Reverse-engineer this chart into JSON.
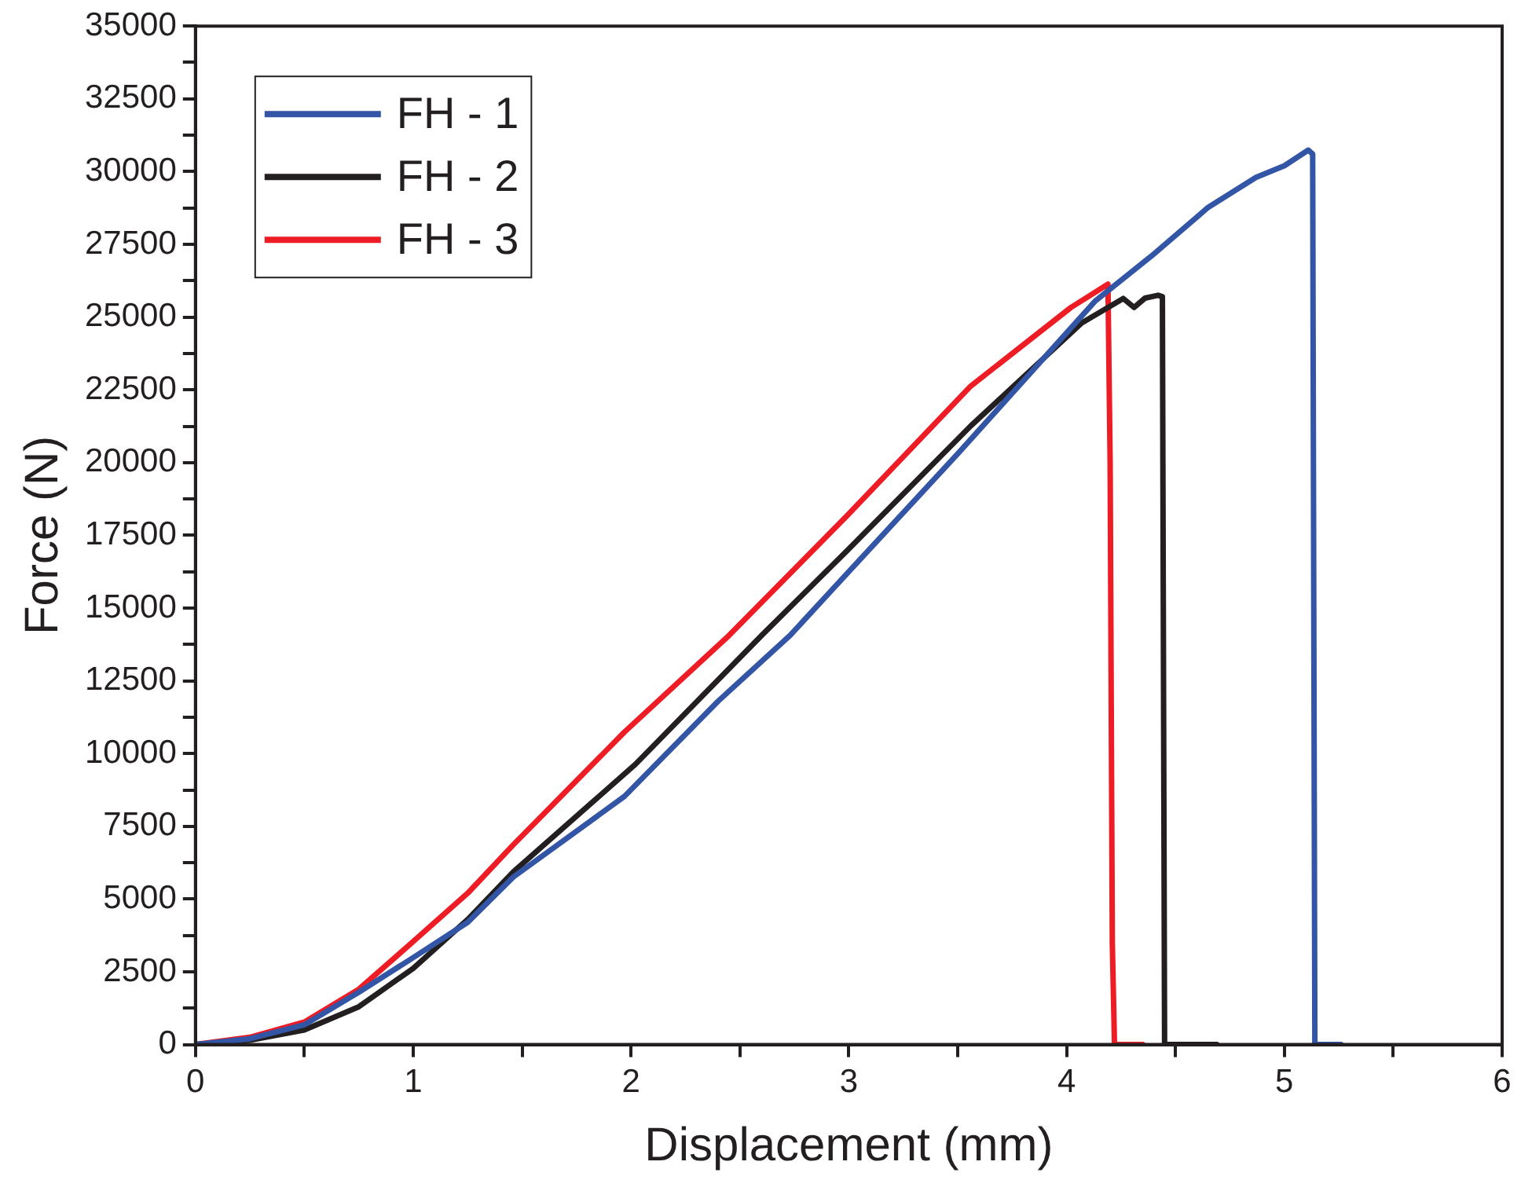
{
  "chart_data": {
    "type": "line",
    "xlabel": "Displacement (mm)",
    "ylabel": "Force (N)",
    "xlim": [
      0,
      6
    ],
    "ylim": [
      0,
      35000
    ],
    "xticks": [
      0,
      {
        "value": 0.5,
        "label": null
      },
      1,
      {
        "value": 1.5,
        "label": null
      },
      2,
      {
        "value": 2.5,
        "label": null
      },
      3,
      {
        "value": 3.5,
        "label": null
      },
      4,
      {
        "value": 4.5,
        "label": null
      },
      5,
      {
        "value": 5.5,
        "label": null
      },
      6
    ],
    "yticks": [
      0,
      {
        "value": 1250,
        "label": null
      },
      2500,
      {
        "value": 3750,
        "label": null
      },
      5000,
      {
        "value": 6250,
        "label": null
      },
      7500,
      {
        "value": 8750,
        "label": null
      },
      10000,
      {
        "value": 11250,
        "label": null
      },
      12500,
      {
        "value": 13750,
        "label": null
      },
      15000,
      {
        "value": 16250,
        "label": null
      },
      17500,
      {
        "value": 18750,
        "label": null
      },
      20000,
      {
        "value": 21250,
        "label": null
      },
      22500,
      {
        "value": 23750,
        "label": null
      },
      25000,
      {
        "value": 26250,
        "label": null
      },
      27500,
      {
        "value": 28750,
        "label": null
      },
      30000,
      {
        "value": 31250,
        "label": null
      },
      32500,
      {
        "value": 33750,
        "label": null
      },
      35000
    ],
    "grid": false,
    "legend": "top left",
    "marker": "none",
    "line_style": "solid",
    "series": [
      {
        "name": "FH - 1",
        "color": "#3355a5",
        "x": [
          0,
          0.25,
          0.5,
          0.75,
          1.0,
          1.25,
          1.46,
          1.97,
          2.4,
          2.73,
          2.99,
          3.5,
          4.13,
          4.39,
          4.65,
          4.87,
          5.0,
          5.11,
          5.13,
          5.14,
          5.26
        ],
        "values": [
          0,
          200,
          680,
          1800,
          2990,
          4200,
          5760,
          8530,
          11800,
          14060,
          16170,
          20300,
          25540,
          27100,
          28770,
          29800,
          30200,
          30740,
          30600,
          0,
          0
        ]
      },
      {
        "name": "FH - 2",
        "color": "#231f20",
        "x": [
          0,
          0.25,
          0.5,
          0.75,
          1.0,
          1.25,
          1.46,
          2.02,
          2.6,
          2.99,
          3.56,
          4.07,
          4.26,
          4.31,
          4.36,
          4.42,
          4.44,
          4.45,
          4.69
        ],
        "values": [
          0,
          150,
          500,
          1300,
          2620,
          4300,
          5940,
          9630,
          14060,
          16960,
          21260,
          24800,
          25640,
          25330,
          25650,
          25750,
          25700,
          0,
          0
        ]
      },
      {
        "name": "FH - 3",
        "color": "#ee1c25",
        "x": [
          0,
          0.25,
          0.5,
          0.75,
          1.0,
          1.25,
          1.46,
          1.97,
          2.45,
          2.99,
          3.56,
          4.02,
          4.19,
          4.2,
          4.21,
          4.22,
          4.35
        ],
        "values": [
          0,
          250,
          775,
          1900,
          3540,
          5200,
          6870,
          10740,
          14060,
          18160,
          22630,
          25330,
          26130,
          20000,
          3500,
          0,
          0
        ]
      }
    ]
  }
}
